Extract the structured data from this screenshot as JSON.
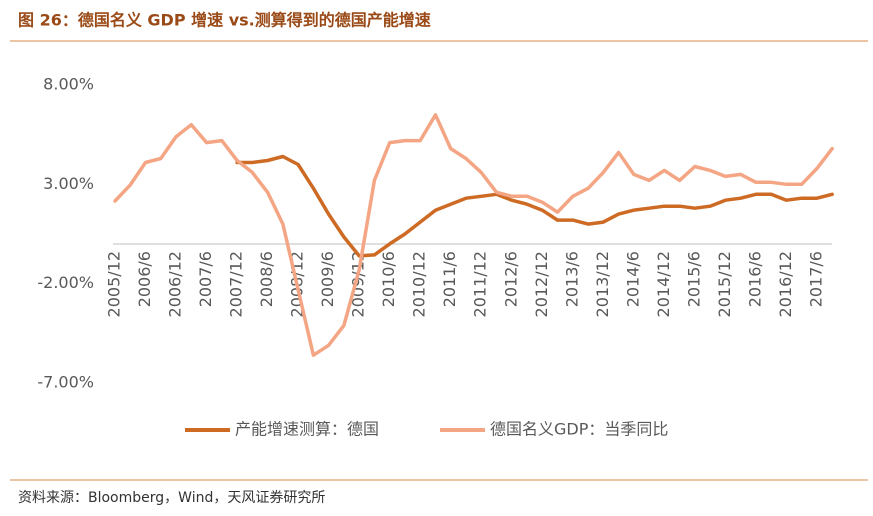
{
  "chart_data": {
    "type": "line",
    "title": "图 26：德国名义 GDP 增速 vs.测算得到的德国产能增速",
    "source": "资料来源：Bloomberg，Wind，天风证券研究所",
    "categories": [
      "2005/12",
      null,
      "2006/6",
      null,
      "2006/12",
      null,
      "2007/6",
      null,
      "2007/12",
      null,
      "2008/6",
      null,
      "2008/12",
      null,
      "2009/6",
      null,
      "2009/12",
      null,
      "2010/6",
      null,
      "2010/12",
      null,
      "2011/6",
      null,
      "2011/12",
      null,
      "2012/6",
      null,
      "2012/12",
      null,
      "2013/6",
      null,
      "2013/12",
      null,
      "2014/6",
      null,
      "2014/12",
      null,
      "2015/6",
      null,
      "2015/12",
      null,
      "2016/6",
      null,
      "2016/12",
      null,
      "2017/6",
      null
    ],
    "series": [
      {
        "name": "产能增速测算：德国",
        "color": "#cd6a24",
        "values": [
          null,
          null,
          null,
          null,
          null,
          null,
          null,
          null,
          4.1,
          4.1,
          4.2,
          4.4,
          4.0,
          2.8,
          1.5,
          0.35,
          -0.6,
          -0.55,
          0,
          0.5,
          1.1,
          1.7,
          2.0,
          2.3,
          2.4,
          2.5,
          2.2,
          2.0,
          1.7,
          1.2,
          1.2,
          1.0,
          1.1,
          1.5,
          1.7,
          1.8,
          1.9,
          1.9,
          1.8,
          1.9,
          2.2,
          2.3,
          2.5,
          2.5,
          2.2,
          2.3,
          2.3,
          2.5
        ]
      },
      {
        "name": "德国名义GDP：当季同比",
        "color": "#f4a584",
        "values": [
          2.16,
          2.97,
          4.1,
          4.3,
          5.4,
          6.0,
          5.1,
          5.2,
          4.2,
          3.6,
          2.6,
          1.0,
          -2.3,
          -5.6,
          -5.1,
          -4.1,
          -1.3,
          3.2,
          5.1,
          5.2,
          5.2,
          6.5,
          4.8,
          4.3,
          3.6,
          2.6,
          2.4,
          2.4,
          2.1,
          1.6,
          2.4,
          2.8,
          3.6,
          4.6,
          3.5,
          3.2,
          3.7,
          3.2,
          3.9,
          3.7,
          3.4,
          3.5,
          3.1,
          3.1,
          3.0,
          3.0,
          3.8,
          4.8
        ]
      }
    ],
    "ylim": [
      -7,
      8
    ],
    "yticks": [
      {
        "value": -7,
        "label": "-7.00%"
      },
      {
        "value": -2,
        "label": "-2.00%"
      },
      {
        "value": 3,
        "label": "3.00%"
      },
      {
        "value": 8,
        "label": "8.00%"
      }
    ]
  }
}
